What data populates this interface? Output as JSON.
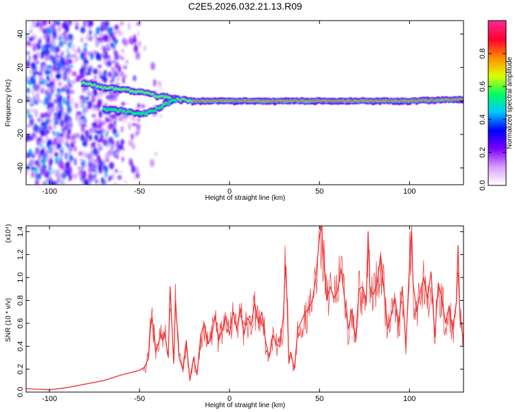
{
  "chart_data": [
    {
      "type": "heatmap",
      "title": "C2E5.2026.032.21.13.R09",
      "xlabel": "Height of straight line (km)",
      "ylabel": "Frequency (Hz)",
      "xlim": [
        -113,
        130
      ],
      "ylim": [
        -50,
        48
      ],
      "xticks": [
        -100,
        -50,
        0,
        50,
        100
      ],
      "yticks": [
        -40,
        -20,
        0,
        20,
        40
      ],
      "xtick_labels": [
        "-100",
        "-50",
        "0",
        "50",
        "100"
      ],
      "ytick_labels": [
        "-40",
        "-20",
        "0",
        "20",
        "40"
      ],
      "colorbar": {
        "label": "Normalized spectral amplitude",
        "range": [
          0,
          1
        ],
        "ticks": [
          0.0,
          0.2,
          0.4,
          0.6,
          0.8
        ],
        "tick_labels": [
          "0.0",
          "0.2",
          "0.4",
          "0.6",
          "0.8"
        ],
        "colors": [
          "#ffffff",
          "#d79cff",
          "#7a00ff",
          "#0000ff",
          "#00c8ff",
          "#00ff60",
          "#e0ff00",
          "#ff8c00",
          "#ff0030",
          "#ff2a8a"
        ]
      },
      "ridge": {
        "upper_branch": [
          [
            -82,
            11
          ],
          [
            -70,
            8
          ],
          [
            -60,
            7
          ],
          [
            -48,
            5
          ],
          [
            -40,
            3
          ],
          [
            -34,
            2
          ],
          [
            -28,
            1
          ],
          [
            -20,
            0
          ]
        ],
        "lower_branch": [
          [
            -70,
            -5
          ],
          [
            -60,
            -6
          ],
          [
            -50,
            -8
          ],
          [
            -42,
            -6
          ],
          [
            -36,
            -2
          ],
          [
            -30,
            1
          ]
        ],
        "main_branch": [
          [
            -20,
            0
          ],
          [
            0,
            0
          ],
          [
            50,
            0
          ],
          [
            100,
            0
          ],
          [
            130,
            1
          ]
        ]
      }
    },
    {
      "type": "line",
      "xlabel": "Height of straight line (km)",
      "ylabel": "SNR (10 * v/v)",
      "y_multiplier": "(x10⁴)",
      "xlim": [
        -113,
        130
      ],
      "ylim": [
        0,
        1.45
      ],
      "xticks": [
        -100,
        -50,
        0,
        50,
        100
      ],
      "yticks": [
        0.0,
        0.2,
        0.4,
        0.6,
        0.8,
        1.0,
        1.2,
        1.4
      ],
      "xtick_labels": [
        "-100",
        "-50",
        "0",
        "50",
        "100"
      ],
      "ytick_labels": [
        "0.0",
        "0.2",
        "0.4",
        "0.6",
        "0.8",
        "1.0",
        "1.2",
        "1.4"
      ],
      "series": [
        {
          "name": "SNR",
          "color": "#ee3333",
          "x": [
            -113,
            -100,
            -90,
            -80,
            -70,
            -60,
            -55,
            -50,
            -47,
            -45,
            -44,
            -43,
            -41,
            -40,
            -38,
            -37,
            -36,
            -34,
            -33,
            -32,
            -31,
            -30,
            -28,
            -26,
            -24,
            -22,
            -20,
            -18,
            -16,
            -14,
            -12,
            -10,
            -8,
            -6,
            -4,
            -2,
            0,
            2,
            4,
            6,
            8,
            10,
            12,
            14,
            16,
            18,
            20,
            22,
            24,
            26,
            28,
            30,
            31,
            32,
            33,
            34,
            36,
            38,
            40,
            42,
            44,
            46,
            48,
            50,
            51,
            52,
            54,
            56,
            58,
            60,
            62,
            64,
            66,
            68,
            70,
            72,
            74,
            76,
            77,
            78,
            80,
            82,
            84,
            86,
            88,
            90,
            92,
            94,
            96,
            98,
            100,
            101,
            102,
            104,
            106,
            108,
            110,
            112,
            114,
            116,
            118,
            120,
            122,
            124,
            126,
            127,
            128,
            130
          ],
          "y": [
            0.03,
            0.02,
            0.04,
            0.07,
            0.1,
            0.15,
            0.17,
            0.19,
            0.22,
            0.3,
            0.55,
            0.65,
            0.35,
            0.4,
            0.5,
            0.45,
            0.52,
            0.3,
            0.92,
            0.6,
            0.25,
            0.8,
            0.3,
            0.2,
            0.45,
            0.1,
            0.3,
            0.15,
            0.5,
            0.6,
            0.42,
            0.48,
            0.66,
            0.45,
            0.55,
            0.66,
            0.5,
            0.7,
            0.55,
            0.73,
            0.5,
            0.65,
            0.58,
            0.78,
            0.6,
            0.7,
            0.45,
            0.3,
            0.5,
            0.42,
            0.4,
            0.68,
            1.12,
            0.8,
            0.25,
            0.35,
            0.2,
            0.55,
            0.62,
            0.7,
            0.72,
            0.8,
            1.0,
            1.36,
            1.45,
            1.25,
            0.8,
            0.92,
            0.82,
            0.88,
            1.08,
            0.8,
            0.55,
            0.72,
            0.46,
            0.9,
            0.92,
            0.78,
            1.4,
            0.9,
            0.85,
            0.95,
            1.2,
            0.85,
            0.55,
            0.68,
            0.82,
            0.58,
            0.92,
            0.4,
            1.12,
            1.4,
            0.95,
            0.7,
            0.88,
            1.0,
            0.82,
            1.05,
            0.48,
            0.95,
            0.82,
            0.6,
            0.75,
            0.55,
            0.78,
            1.28,
            0.65,
            0.45
          ]
        }
      ]
    }
  ]
}
